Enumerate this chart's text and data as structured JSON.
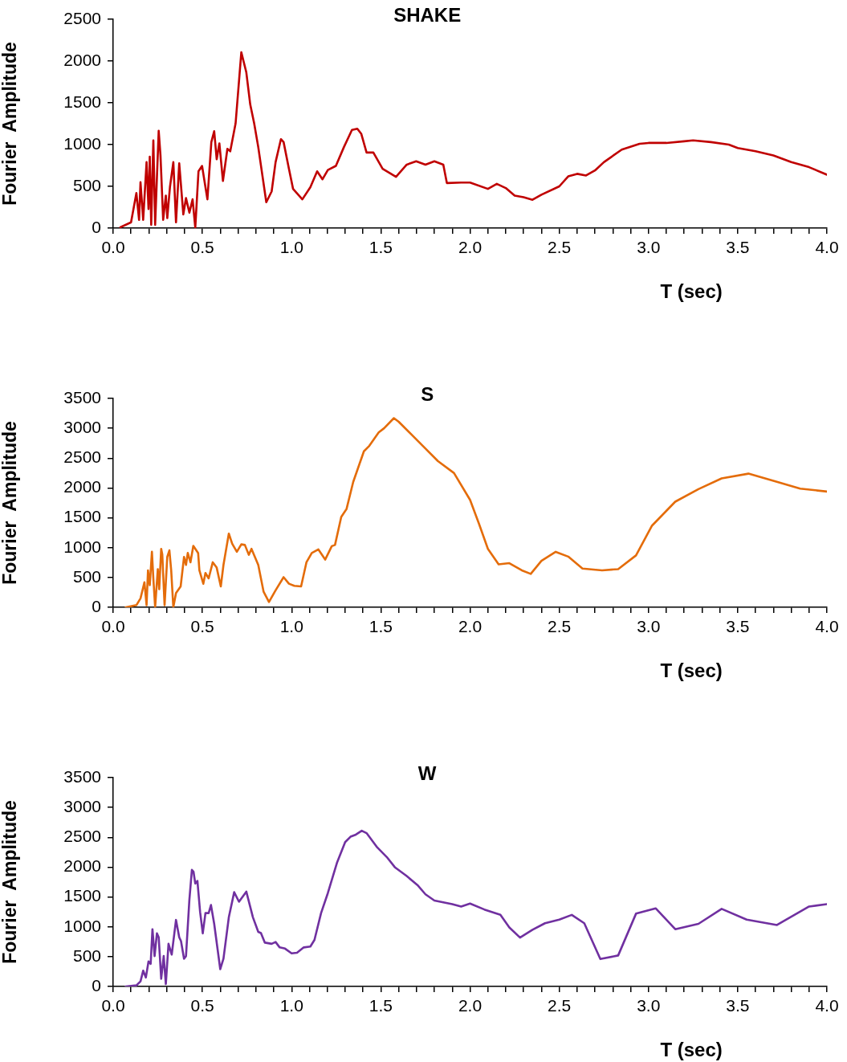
{
  "chart_data": [
    {
      "type": "line",
      "title": "SHAKE",
      "xlabel": "T (sec)",
      "ylabel": "Fourier  Amplitude",
      "x": [
        0.04,
        0.1,
        0.13,
        0.145,
        0.153,
        0.168,
        0.187,
        0.198,
        0.205,
        0.213,
        0.225,
        0.235,
        0.255,
        0.265,
        0.28,
        0.295,
        0.303,
        0.318,
        0.337,
        0.352,
        0.37,
        0.393,
        0.408,
        0.427,
        0.445,
        0.46,
        0.478,
        0.498,
        0.528,
        0.55,
        0.566,
        0.58,
        0.595,
        0.615,
        0.64,
        0.656,
        0.686,
        0.718,
        0.746,
        0.768,
        0.79,
        0.813,
        0.858,
        0.888,
        0.91,
        0.94,
        0.955,
        0.985,
        1.008,
        1.06,
        1.105,
        1.143,
        1.173,
        1.203,
        1.248,
        1.293,
        1.338,
        1.368,
        1.39,
        1.42,
        1.458,
        1.51,
        1.585,
        1.645,
        1.698,
        1.75,
        1.8,
        1.85,
        1.87,
        1.95,
        2.0,
        2.1,
        2.15,
        2.2,
        2.25,
        2.3,
        2.35,
        2.4,
        2.5,
        2.55,
        2.6,
        2.65,
        2.7,
        2.75,
        2.85,
        2.95,
        3.0,
        3.1,
        3.2,
        3.25,
        3.35,
        3.45,
        3.5,
        3.6,
        3.7,
        3.8,
        3.9,
        4.0
      ],
      "series": [
        {
          "color": "#c00000",
          "values": [
            10,
            70,
            420,
            100,
            550,
            100,
            790,
            230,
            855,
            40,
            1050,
            40,
            1165,
            870,
            100,
            390,
            120,
            490,
            790,
            70,
            775,
            165,
            360,
            185,
            345,
            5,
            680,
            745,
            345,
            1030,
            1160,
            825,
            1015,
            565,
            950,
            920,
            1255,
            2105,
            1865,
            1480,
            1255,
            970,
            310,
            440,
            790,
            1065,
            1030,
            710,
            470,
            345,
            490,
            680,
            585,
            695,
            745,
            970,
            1175,
            1190,
            1130,
            905,
            905,
            710,
            615,
            760,
            800,
            760,
            800,
            760,
            540,
            545,
            545,
            470,
            530,
            480,
            390,
            370,
            340,
            400,
            500,
            620,
            650,
            630,
            690,
            790,
            940,
            1010,
            1020,
            1020,
            1040,
            1050,
            1030,
            1000,
            960,
            920,
            870,
            790,
            730,
            640
          ]
        }
      ],
      "xlim": [
        0,
        4
      ],
      "ylim": [
        0,
        2500
      ],
      "yticks": [
        0,
        500,
        1000,
        1500,
        2000,
        2500
      ],
      "xticks": [
        {
          "value": 0,
          "label": "0.0"
        },
        {
          "value": 0.1,
          "label": null
        },
        {
          "value": 0.2,
          "label": null
        },
        {
          "value": 0.3,
          "label": null
        },
        {
          "value": 0.4,
          "label": null
        },
        {
          "value": 0.5,
          "label": "0.5"
        },
        {
          "value": 0.6,
          "label": null
        },
        {
          "value": 0.7,
          "label": null
        },
        {
          "value": 0.8,
          "label": null
        },
        {
          "value": 0.9,
          "label": null
        },
        {
          "value": 1,
          "label": "1.0"
        },
        {
          "value": 1.1,
          "label": null
        },
        {
          "value": 1.2,
          "label": null
        },
        {
          "value": 1.3,
          "label": null
        },
        {
          "value": 1.4,
          "label": null
        },
        {
          "value": 1.5,
          "label": "1.5"
        },
        {
          "value": 1.6,
          "label": null
        },
        {
          "value": 1.7,
          "label": null
        },
        {
          "value": 1.8,
          "label": null
        },
        {
          "value": 1.9,
          "label": null
        },
        {
          "value": 2,
          "label": "2.0"
        },
        {
          "value": 2.1,
          "label": null
        },
        {
          "value": 2.2,
          "label": null
        },
        {
          "value": 2.3,
          "label": null
        },
        {
          "value": 2.4,
          "label": null
        },
        {
          "value": 2.5,
          "label": "2.5"
        },
        {
          "value": 2.6,
          "label": null
        },
        {
          "value": 2.7,
          "label": null
        },
        {
          "value": 2.8,
          "label": null
        },
        {
          "value": 2.9,
          "label": null
        },
        {
          "value": 3,
          "label": "3.0"
        },
        {
          "value": 3.1,
          "label": null
        },
        {
          "value": 3.2,
          "label": null
        },
        {
          "value": 3.3,
          "label": null
        },
        {
          "value": 3.4,
          "label": null
        },
        {
          "value": 3.5,
          "label": "3.5"
        },
        {
          "value": 3.6,
          "label": null
        },
        {
          "value": 3.7,
          "label": null
        },
        {
          "value": 3.8,
          "label": null
        },
        {
          "value": 3.9,
          "label": null
        },
        {
          "value": 4,
          "label": "4.0"
        }
      ]
    },
    {
      "type": "line",
      "title": "S",
      "xlabel": "T (sec)",
      "ylabel": "Fourier  Amplitude",
      "x": [
        0.07,
        0.13,
        0.153,
        0.175,
        0.187,
        0.195,
        0.205,
        0.217,
        0.225,
        0.235,
        0.25,
        0.258,
        0.269,
        0.275,
        0.288,
        0.303,
        0.315,
        0.325,
        0.337,
        0.352,
        0.378,
        0.397,
        0.408,
        0.418,
        0.433,
        0.449,
        0.476,
        0.483,
        0.505,
        0.517,
        0.535,
        0.558,
        0.58,
        0.603,
        0.618,
        0.648,
        0.667,
        0.693,
        0.718,
        0.738,
        0.76,
        0.775,
        0.813,
        0.843,
        0.873,
        0.91,
        0.955,
        0.985,
        1.015,
        1.053,
        1.083,
        1.113,
        1.15,
        1.188,
        1.225,
        1.243,
        1.278,
        1.308,
        1.345,
        1.405,
        1.435,
        1.488,
        1.518,
        1.573,
        1.6,
        1.675,
        1.75,
        1.82,
        1.91,
        2.0,
        2.05,
        2.1,
        2.16,
        2.22,
        2.29,
        2.34,
        2.4,
        2.48,
        2.55,
        2.63,
        2.74,
        2.83,
        2.93,
        3.02,
        3.15,
        3.28,
        3.41,
        3.56,
        3.7,
        3.85,
        4.0
      ],
      "series": [
        {
          "color": "#e46c0a",
          "values": [
            0,
            36,
            150,
            420,
            36,
            620,
            370,
            930,
            485,
            0,
            640,
            305,
            980,
            890,
            36,
            845,
            955,
            620,
            0,
            240,
            350,
            845,
            710,
            910,
            755,
            1030,
            910,
            620,
            395,
            575,
            485,
            755,
            665,
            350,
            710,
            1235,
            1065,
            930,
            1055,
            1045,
            880,
            980,
            710,
            260,
            90,
            285,
            505,
            395,
            360,
            350,
            755,
            910,
            970,
            800,
            1025,
            1045,
            1515,
            1650,
            2100,
            2615,
            2705,
            2930,
            3000,
            3170,
            3110,
            2885,
            2660,
            2450,
            2250,
            1800,
            1400,
            980,
            720,
            740,
            620,
            560,
            780,
            930,
            850,
            650,
            620,
            640,
            870,
            1370,
            1770,
            1980,
            2160,
            2240,
            2120,
            1990,
            1940
          ]
        }
      ],
      "xlim": [
        0,
        4
      ],
      "ylim": [
        0,
        3500
      ],
      "yticks": [
        0,
        500,
        1000,
        1500,
        2000,
        2500,
        3000,
        3500
      ],
      "xticks": [
        {
          "value": 0,
          "label": "0.0"
        },
        {
          "value": 0.1,
          "label": null
        },
        {
          "value": 0.2,
          "label": null
        },
        {
          "value": 0.3,
          "label": null
        },
        {
          "value": 0.4,
          "label": null
        },
        {
          "value": 0.5,
          "label": "0.5"
        },
        {
          "value": 0.6,
          "label": null
        },
        {
          "value": 0.7,
          "label": null
        },
        {
          "value": 0.8,
          "label": null
        },
        {
          "value": 0.9,
          "label": null
        },
        {
          "value": 1,
          "label": "1.0"
        },
        {
          "value": 1.1,
          "label": null
        },
        {
          "value": 1.2,
          "label": null
        },
        {
          "value": 1.3,
          "label": null
        },
        {
          "value": 1.4,
          "label": null
        },
        {
          "value": 1.5,
          "label": "1.5"
        },
        {
          "value": 1.6,
          "label": null
        },
        {
          "value": 1.7,
          "label": null
        },
        {
          "value": 1.8,
          "label": null
        },
        {
          "value": 1.9,
          "label": null
        },
        {
          "value": 2,
          "label": "2.0"
        },
        {
          "value": 2.1,
          "label": null
        },
        {
          "value": 2.2,
          "label": null
        },
        {
          "value": 2.3,
          "label": null
        },
        {
          "value": 2.4,
          "label": null
        },
        {
          "value": 2.5,
          "label": "2.5"
        },
        {
          "value": 2.6,
          "label": null
        },
        {
          "value": 2.7,
          "label": null
        },
        {
          "value": 2.8,
          "label": null
        },
        {
          "value": 2.9,
          "label": null
        },
        {
          "value": 3,
          "label": "3.0"
        },
        {
          "value": 3.1,
          "label": null
        },
        {
          "value": 3.2,
          "label": null
        },
        {
          "value": 3.3,
          "label": null
        },
        {
          "value": 3.4,
          "label": null
        },
        {
          "value": 3.5,
          "label": "3.5"
        },
        {
          "value": 3.6,
          "label": null
        },
        {
          "value": 3.7,
          "label": null
        },
        {
          "value": 3.8,
          "label": null
        },
        {
          "value": 3.9,
          "label": null
        },
        {
          "value": 4,
          "label": "4.0"
        }
      ]
    },
    {
      "type": "line",
      "title": "W",
      "xlabel": "T (sec)",
      "ylabel": "Fourier  Amplitude",
      "x": [
        0.07,
        0.13,
        0.153,
        0.168,
        0.183,
        0.198,
        0.21,
        0.22,
        0.232,
        0.245,
        0.255,
        0.269,
        0.283,
        0.295,
        0.31,
        0.328,
        0.352,
        0.37,
        0.38,
        0.397,
        0.408,
        0.427,
        0.441,
        0.45,
        0.46,
        0.472,
        0.487,
        0.502,
        0.517,
        0.535,
        0.548,
        0.566,
        0.6,
        0.618,
        0.648,
        0.678,
        0.705,
        0.746,
        0.783,
        0.813,
        0.828,
        0.85,
        0.888,
        0.91,
        0.933,
        0.963,
        1.0,
        1.03,
        1.068,
        1.105,
        1.128,
        1.165,
        1.203,
        1.255,
        1.3,
        1.33,
        1.36,
        1.393,
        1.42,
        1.48,
        1.533,
        1.578,
        1.645,
        1.705,
        1.75,
        1.8,
        1.9,
        1.95,
        2.0,
        2.08,
        2.17,
        2.22,
        2.28,
        2.35,
        2.42,
        2.5,
        2.57,
        2.64,
        2.73,
        2.83,
        2.93,
        3.04,
        3.15,
        3.28,
        3.41,
        3.55,
        3.72,
        3.9,
        4.0
      ],
      "series": [
        {
          "color": "#7030a0",
          "values": [
            0,
            18,
            85,
            265,
            150,
            420,
            380,
            960,
            510,
            890,
            825,
            130,
            510,
            40,
            715,
            535,
            1115,
            825,
            760,
            465,
            510,
            1455,
            1955,
            1925,
            1725,
            1770,
            1250,
            890,
            1230,
            1230,
            1365,
            1050,
            290,
            465,
            1160,
            1580,
            1420,
            1590,
            1160,
            915,
            895,
            735,
            715,
            745,
            655,
            635,
            555,
            565,
            655,
            670,
            780,
            1230,
            1565,
            2080,
            2420,
            2510,
            2545,
            2610,
            2570,
            2330,
            2170,
            2000,
            1850,
            1700,
            1545,
            1440,
            1380,
            1340,
            1390,
            1290,
            1200,
            990,
            820,
            950,
            1060,
            1120,
            1200,
            1060,
            460,
            520,
            1220,
            1310,
            960,
            1050,
            1300,
            1120,
            1030,
            1340,
            1380
          ]
        }
      ],
      "xlim": [
        0,
        4
      ],
      "ylim": [
        0,
        3500
      ],
      "yticks": [
        0,
        500,
        1000,
        1500,
        2000,
        2500,
        3000,
        3500
      ],
      "xticks": [
        {
          "value": 0,
          "label": "0.0"
        },
        {
          "value": 0.1,
          "label": null
        },
        {
          "value": 0.2,
          "label": null
        },
        {
          "value": 0.3,
          "label": null
        },
        {
          "value": 0.4,
          "label": null
        },
        {
          "value": 0.5,
          "label": "0.5"
        },
        {
          "value": 0.6,
          "label": null
        },
        {
          "value": 0.7,
          "label": null
        },
        {
          "value": 0.8,
          "label": null
        },
        {
          "value": 0.9,
          "label": null
        },
        {
          "value": 1,
          "label": "1.0"
        },
        {
          "value": 1.1,
          "label": null
        },
        {
          "value": 1.2,
          "label": null
        },
        {
          "value": 1.3,
          "label": null
        },
        {
          "value": 1.4,
          "label": null
        },
        {
          "value": 1.5,
          "label": "1.5"
        },
        {
          "value": 1.6,
          "label": null
        },
        {
          "value": 1.7,
          "label": null
        },
        {
          "value": 1.8,
          "label": null
        },
        {
          "value": 1.9,
          "label": null
        },
        {
          "value": 2,
          "label": "2.0"
        },
        {
          "value": 2.1,
          "label": null
        },
        {
          "value": 2.2,
          "label": null
        },
        {
          "value": 2.3,
          "label": null
        },
        {
          "value": 2.4,
          "label": null
        },
        {
          "value": 2.5,
          "label": "2.5"
        },
        {
          "value": 2.6,
          "label": null
        },
        {
          "value": 2.7,
          "label": null
        },
        {
          "value": 2.8,
          "label": null
        },
        {
          "value": 2.9,
          "label": null
        },
        {
          "value": 3,
          "label": "3.0"
        },
        {
          "value": 3.1,
          "label": null
        },
        {
          "value": 3.2,
          "label": null
        },
        {
          "value": 3.3,
          "label": null
        },
        {
          "value": 3.4,
          "label": null
        },
        {
          "value": 3.5,
          "label": "3.5"
        },
        {
          "value": 3.6,
          "label": null
        },
        {
          "value": 3.7,
          "label": null
        },
        {
          "value": 3.8,
          "label": null
        },
        {
          "value": 3.9,
          "label": null
        },
        {
          "value": 4,
          "label": "4.0"
        }
      ]
    }
  ]
}
